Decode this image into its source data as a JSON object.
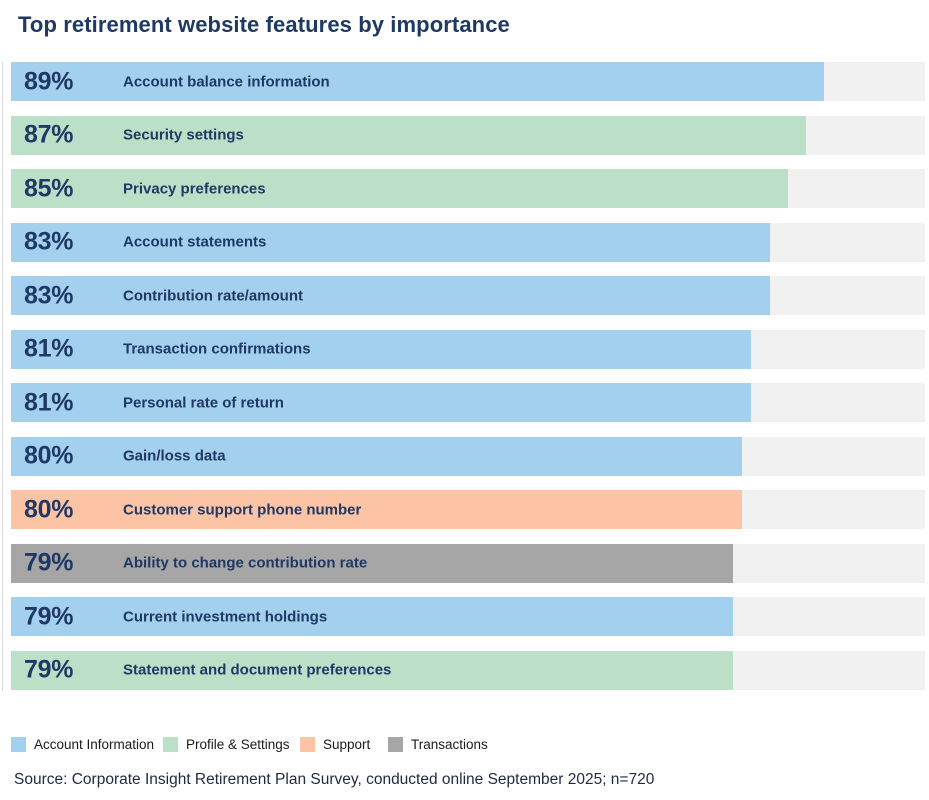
{
  "title": "Top retirement website features by importance",
  "colors": {
    "account-information": "#a3d0ef",
    "profile-settings": "#bcdfc7",
    "support": "#fcc4a4",
    "transactions": "#a6a6a6",
    "track": "#f1f1f1",
    "heading_text": "#1f3864"
  },
  "chart_data": {
    "type": "bar",
    "orientation": "horizontal",
    "title": "Top retirement website features by importance",
    "value_unit": "%",
    "xlim": [
      0,
      100
    ],
    "grid": false,
    "legend_position": "bottom",
    "bars": [
      {
        "value": 89,
        "pct_label": "89%",
        "label": "Account balance information",
        "category": "Account Information",
        "color_key": "account-information"
      },
      {
        "value": 87,
        "pct_label": "87%",
        "label": "Security settings",
        "category": "Profile & Settings",
        "color_key": "profile-settings"
      },
      {
        "value": 85,
        "pct_label": "85%",
        "label": "Privacy preferences",
        "category": "Profile & Settings",
        "color_key": "profile-settings"
      },
      {
        "value": 83,
        "pct_label": "83%",
        "label": "Account statements",
        "category": "Account Information",
        "color_key": "account-information"
      },
      {
        "value": 83,
        "pct_label": "83%",
        "label": "Contribution rate/amount",
        "category": "Account Information",
        "color_key": "account-information"
      },
      {
        "value": 81,
        "pct_label": "81%",
        "label": "Transaction confirmations",
        "category": "Account Information",
        "color_key": "account-information"
      },
      {
        "value": 81,
        "pct_label": "81%",
        "label": "Personal rate of return",
        "category": "Account Information",
        "color_key": "account-information"
      },
      {
        "value": 80,
        "pct_label": "80%",
        "label": "Gain/loss data",
        "category": "Account Information",
        "color_key": "account-information"
      },
      {
        "value": 80,
        "pct_label": "80%",
        "label": "Customer support phone number",
        "category": "Support",
        "color_key": "support"
      },
      {
        "value": 79,
        "pct_label": "79%",
        "label": "Ability to change contribution rate",
        "category": "Transactions",
        "color_key": "transactions"
      },
      {
        "value": 79,
        "pct_label": "79%",
        "label": "Current investment holdings",
        "category": "Account Information",
        "color_key": "account-information"
      },
      {
        "value": 79,
        "pct_label": "79%",
        "label": "Statement and document preferences",
        "category": "Profile & Settings",
        "color_key": "profile-settings"
      }
    ]
  },
  "legend": {
    "items": [
      {
        "label": "Account Information",
        "color_key": "account-information"
      },
      {
        "label": "Profile & Settings",
        "color_key": "profile-settings"
      },
      {
        "label": "Support",
        "color_key": "support"
      },
      {
        "label": "Transactions",
        "color_key": "transactions"
      }
    ]
  },
  "source": "Source: Corporate Insight Retirement Plan Survey, conducted online September 2025; n=720"
}
